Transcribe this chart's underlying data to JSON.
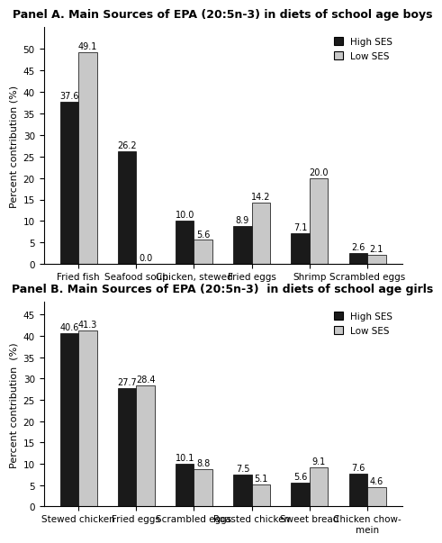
{
  "panel_a": {
    "title": "Panel A. Main Sources of EPA (20:5n-3) in diets of school age boys",
    "categories": [
      "Fried fish",
      "Seafood soup",
      "Chicken, stewed",
      "Fried eggs",
      "Shrimp",
      "Scrambled eggs"
    ],
    "high_ses": [
      37.6,
      26.2,
      10.0,
      8.9,
      7.1,
      2.6
    ],
    "low_ses": [
      49.1,
      0.0,
      5.6,
      14.2,
      20.0,
      2.1
    ],
    "ylim": [
      0,
      55
    ],
    "yticks": [
      0,
      5,
      10,
      15,
      20,
      25,
      30,
      35,
      40,
      45,
      50
    ],
    "ylabel": "Percent contribution (%)"
  },
  "panel_b": {
    "title": "Panel B. Main Sources of EPA (20:5n-3)  in diets of school age girls",
    "categories": [
      "Stewed chicken",
      "Fried eggs",
      "Scrambled eggs",
      "Roasted chicken",
      "Sweet bread",
      "Chicken chow-\nmein"
    ],
    "high_ses": [
      40.6,
      27.7,
      10.1,
      7.5,
      5.6,
      7.6
    ],
    "low_ses": [
      41.3,
      28.4,
      8.8,
      5.1,
      9.1,
      4.6
    ],
    "ylim": [
      0,
      48
    ],
    "yticks": [
      0,
      5,
      10,
      15,
      20,
      25,
      30,
      35,
      40,
      45
    ],
    "ylabel": "Percent contribution  (%)"
  },
  "bar_width": 0.32,
  "high_ses_color": "#1a1a1a",
  "low_ses_color": "#c8c8c8",
  "legend_labels": [
    "High SES",
    "Low SES"
  ],
  "label_fontsize": 7.5,
  "tick_fontsize": 7.5,
  "title_fontsize": 9,
  "ylabel_fontsize": 8,
  "annotation_fontsize": 7
}
